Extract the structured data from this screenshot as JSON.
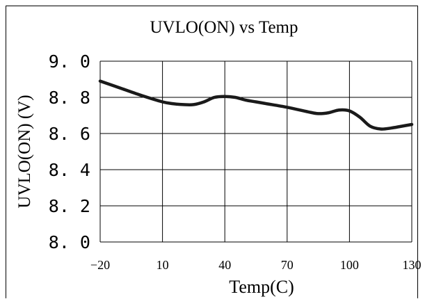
{
  "chart_data": {
    "type": "line",
    "title": "UVLO(ON) vs Temp",
    "xlabel": "Temp(C)",
    "ylabel": "UVLO(ON)  (V)",
    "xlim": [
      -20,
      130
    ],
    "ylim": [
      8.0,
      9.0
    ],
    "x_ticks": [
      -20,
      10,
      40,
      70,
      100,
      130
    ],
    "x_tick_labels": [
      "−20",
      "10",
      "40",
      "70",
      "100",
      "130"
    ],
    "y_ticks": [
      8.0,
      8.2,
      8.4,
      8.6,
      8.8,
      9.0
    ],
    "y_tick_labels": [
      "8. 0",
      "8. 2",
      "8. 4",
      "8. 6",
      "8. 8",
      "9. 0"
    ],
    "grid": true,
    "colors": {
      "line": "#1a1a1a",
      "grid": "#000000"
    },
    "series": [
      {
        "x": [
          -20,
          -10,
          0,
          10,
          15,
          20,
          25,
          30,
          35,
          40,
          45,
          50,
          55,
          60,
          70,
          80,
          85,
          90,
          95,
          100,
          105,
          110,
          115,
          120,
          125,
          130
        ],
        "values": [
          8.89,
          8.85,
          8.81,
          8.775,
          8.765,
          8.76,
          8.76,
          8.775,
          8.8,
          8.805,
          8.8,
          8.785,
          8.775,
          8.765,
          8.745,
          8.72,
          8.71,
          8.715,
          8.73,
          8.725,
          8.69,
          8.64,
          8.625,
          8.63,
          8.64,
          8.65
        ]
      }
    ]
  }
}
